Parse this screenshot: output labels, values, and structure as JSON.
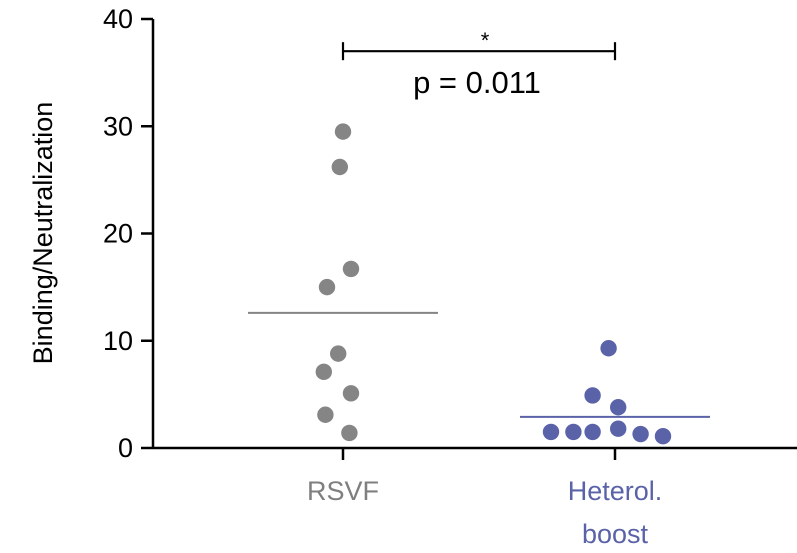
{
  "chart_data": {
    "type": "scatter",
    "ylabel": "Binding/Neutralization",
    "ylim": [
      0,
      40
    ],
    "yticks": [
      0,
      10,
      20,
      30,
      40
    ],
    "categories": [
      {
        "lines": [
          "RSVF"
        ],
        "color": "#7f7f80"
      },
      {
        "lines": [
          "Heterol.",
          "boost"
        ],
        "color": "#5b63a8"
      }
    ],
    "series": [
      {
        "category_index": 0,
        "color": "#858585",
        "points": [
          {
            "jitter": 0.0,
            "y": 29.5
          },
          {
            "jitter": -0.1,
            "y": 26.2
          },
          {
            "jitter": 0.25,
            "y": 16.7
          },
          {
            "jitter": -0.5,
            "y": 15.0
          },
          {
            "jitter": -0.15,
            "y": 8.8
          },
          {
            "jitter": -0.6,
            "y": 7.1
          },
          {
            "jitter": 0.25,
            "y": 5.1
          },
          {
            "jitter": -0.55,
            "y": 3.1
          },
          {
            "jitter": 0.2,
            "y": 1.4
          }
        ],
        "mean": 12.6
      },
      {
        "category_index": 1,
        "color": "#5b63a8",
        "points": [
          {
            "jitter": -0.2,
            "y": 9.3
          },
          {
            "jitter": -0.7,
            "y": 4.9
          },
          {
            "jitter": 0.1,
            "y": 3.8
          },
          {
            "jitter": -2.0,
            "y": 1.5
          },
          {
            "jitter": -1.3,
            "y": 1.5
          },
          {
            "jitter": -0.7,
            "y": 1.5
          },
          {
            "jitter": 0.1,
            "y": 1.8
          },
          {
            "jitter": 0.8,
            "y": 1.3
          },
          {
            "jitter": 1.5,
            "y": 1.1
          }
        ],
        "mean": 2.9
      }
    ],
    "significance": {
      "star": "*",
      "p_text": "p = 0.011",
      "from": 0,
      "to": 1,
      "y": 37.0
    }
  }
}
